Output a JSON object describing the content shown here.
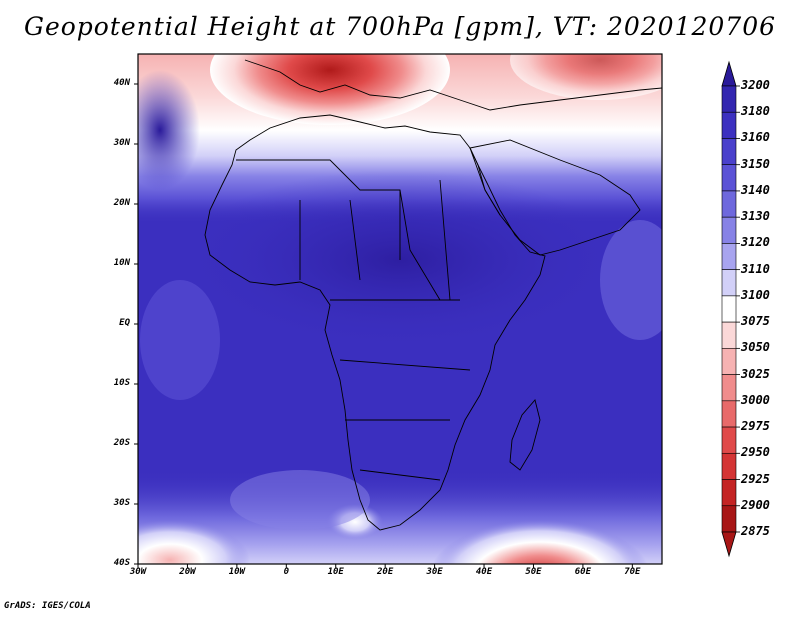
{
  "title": "Geopotential Height at 700hPa [gpm], VT: 2020120706",
  "credit": "GrADS: IGES/COLA",
  "map": {
    "lon_range": [
      -30,
      76
    ],
    "lat_range": [
      -40,
      45
    ],
    "lat_ticks": [
      {
        "value": 40,
        "label": "40N"
      },
      {
        "value": 30,
        "label": "30N"
      },
      {
        "value": 20,
        "label": "20N"
      },
      {
        "value": 10,
        "label": "10N"
      },
      {
        "value": 0,
        "label": "EQ"
      },
      {
        "value": -10,
        "label": "10S"
      },
      {
        "value": -20,
        "label": "20S"
      },
      {
        "value": -30,
        "label": "30S"
      },
      {
        "value": -40,
        "label": "40S"
      }
    ],
    "lon_ticks": [
      {
        "value": -30,
        "label": "30W"
      },
      {
        "value": -20,
        "label": "20W"
      },
      {
        "value": -10,
        "label": "10W"
      },
      {
        "value": 0,
        "label": "0"
      },
      {
        "value": 10,
        "label": "10E"
      },
      {
        "value": 20,
        "label": "20E"
      },
      {
        "value": 30,
        "label": "30E"
      },
      {
        "value": 40,
        "label": "40E"
      },
      {
        "value": 50,
        "label": "50E"
      },
      {
        "value": 60,
        "label": "60E"
      },
      {
        "value": 70,
        "label": "70E"
      }
    ],
    "background_color": "#3b2fbf",
    "land_outline_color": "#000000"
  },
  "colorbar": {
    "levels": [
      {
        "label": "3200",
        "color": "#2a1a9a"
      },
      {
        "label": "3180",
        "color": "#3326b0"
      },
      {
        "label": "3160",
        "color": "#3c30c0"
      },
      {
        "label": "3150",
        "color": "#4a40cc"
      },
      {
        "label": "3140",
        "color": "#5b52d6"
      },
      {
        "label": "3130",
        "color": "#6e68dd"
      },
      {
        "label": "3120",
        "color": "#8782e6"
      },
      {
        "label": "3110",
        "color": "#a8a4ef"
      },
      {
        "label": "3100",
        "color": "#d2d0f8"
      },
      {
        "label": "3075",
        "color": "#ffffff"
      },
      {
        "label": "3050",
        "color": "#fbd8d8"
      },
      {
        "label": "3025",
        "color": "#f6b2b2"
      },
      {
        "label": "3000",
        "color": "#f08c8c"
      },
      {
        "label": "2975",
        "color": "#e86a6a"
      },
      {
        "label": "2950",
        "color": "#e04a4a"
      },
      {
        "label": "2925",
        "color": "#d43434"
      },
      {
        "label": "2900",
        "color": "#c42424"
      },
      {
        "label": "2875",
        "color": "#a81616"
      }
    ]
  }
}
